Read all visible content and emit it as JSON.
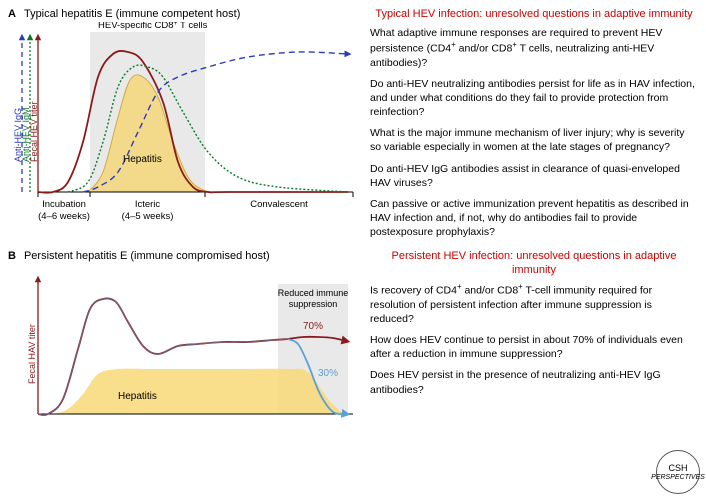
{
  "panelA": {
    "letter": "A",
    "title": "Typical hepatitis E (immune competent host)",
    "phases": [
      {
        "label": "Incubation",
        "sub": "(4–6 weeks)"
      },
      {
        "label": "Icteric",
        "sub": "(4–5 weeks)"
      },
      {
        "label": "Convalescent",
        "sub": ""
      }
    ],
    "axisLabels": {
      "fecal": "Fecal HEV titer",
      "igm": "Anti-HEV IgM",
      "igg": "Anti-HEV IgG"
    },
    "bandLabel": "HEV-specific CD8⁺ T cells",
    "hepatitisLabel": "Hepatitis",
    "colors": {
      "fecal": "#8b1a1a",
      "igm": "#0a7a2a",
      "igg": "#2a3bbb",
      "fill": "#f5d77a",
      "fillBorder": "#c9a227",
      "band": "#e9e9e9"
    },
    "curves": {
      "fecal": [
        [
          30,
          170
        ],
        [
          45,
          170
        ],
        [
          60,
          160
        ],
        [
          75,
          120
        ],
        [
          90,
          55
        ],
        [
          105,
          32
        ],
        [
          120,
          30
        ],
        [
          135,
          40
        ],
        [
          155,
          80
        ],
        [
          170,
          140
        ],
        [
          185,
          165
        ],
        [
          200,
          170
        ],
        [
          220,
          170
        ],
        [
          340,
          170
        ]
      ],
      "igm": [
        [
          60,
          170
        ],
        [
          80,
          160
        ],
        [
          95,
          120
        ],
        [
          110,
          65
        ],
        [
          125,
          45
        ],
        [
          140,
          45
        ],
        [
          155,
          55
        ],
        [
          175,
          90
        ],
        [
          200,
          130
        ],
        [
          230,
          155
        ],
        [
          270,
          165
        ],
        [
          340,
          170
        ]
      ],
      "igg": [
        [
          75,
          170
        ],
        [
          90,
          165
        ],
        [
          110,
          150
        ],
        [
          130,
          110
        ],
        [
          150,
          70
        ],
        [
          170,
          55
        ],
        [
          200,
          45
        ],
        [
          240,
          35
        ],
        [
          290,
          30
        ],
        [
          340,
          32
        ]
      ],
      "hepatitis": [
        [
          80,
          170
        ],
        [
          95,
          150
        ],
        [
          110,
          95
        ],
        [
          122,
          58
        ],
        [
          135,
          55
        ],
        [
          150,
          75
        ],
        [
          165,
          120
        ],
        [
          180,
          155
        ],
        [
          195,
          168
        ],
        [
          210,
          170
        ]
      ]
    },
    "questionsHeader": "Typical HEV infection: unresolved questions in adaptive immunity",
    "questions": [
      "What adaptive immune responses are required to prevent HEV persistence (CD4⁺ and/or CD8⁺ T cells, neutralizing anti-HEV antibodies)?",
      "Do anti-HEV neutralizing antibodies persist for life as in HAV infection, and under what conditions do they fail to provide protection from reinfection?",
      "What is the major immune mechanism of liver injury; why is severity so variable especially in women at the late stages of pregnancy?",
      "Do anti-HEV IgG antibodies assist in clearance of quasi-enveloped HAV viruses?",
      "Can passive or active immunization prevent hepatitis as described in HAV infection and, if not, why do antibodies fail to provide postexposure prophylaxis?"
    ]
  },
  "panelB": {
    "letter": "B",
    "title": "Persistent hepatitis E (immune compromised host)",
    "axisLabel": "Fecal HAV titer",
    "hepatitisLabel": "Hepatitis",
    "bandLabel": "Reduced immune suppression",
    "pctTop": "70%",
    "pctBottom": "30%",
    "colors": {
      "fecal": "#8b1a1a",
      "split": "#5aa0d8",
      "fill": "#f8d878",
      "band": "#e9e9e9"
    },
    "curves": {
      "fecal": [
        [
          30,
          150
        ],
        [
          40,
          150
        ],
        [
          55,
          135
        ],
        [
          70,
          85
        ],
        [
          82,
          45
        ],
        [
          95,
          35
        ],
        [
          108,
          38
        ],
        [
          120,
          58
        ],
        [
          135,
          82
        ],
        [
          150,
          90
        ],
        [
          170,
          82
        ],
        [
          190,
          80
        ],
        [
          215,
          78
        ],
        [
          240,
          78
        ],
        [
          265,
          76
        ],
        [
          280,
          75
        ]
      ],
      "fecal70": [
        [
          280,
          75
        ],
        [
          295,
          73
        ],
        [
          310,
          73
        ],
        [
          325,
          74
        ],
        [
          338,
          77
        ]
      ],
      "fecal30": [
        [
          280,
          75
        ],
        [
          290,
          80
        ],
        [
          300,
          100
        ],
        [
          312,
          130
        ],
        [
          325,
          148
        ],
        [
          338,
          150
        ]
      ],
      "hepatitis": [
        [
          45,
          150
        ],
        [
          60,
          145
        ],
        [
          75,
          130
        ],
        [
          90,
          110
        ],
        [
          110,
          105
        ],
        [
          140,
          105
        ],
        [
          180,
          105
        ],
        [
          230,
          105
        ],
        [
          280,
          105
        ],
        [
          300,
          108
        ],
        [
          320,
          135
        ],
        [
          335,
          150
        ]
      ]
    },
    "questionsHeader": "Persistent HEV infection: unresolved questions in adaptive immunity",
    "questions": [
      "Is recovery of CD4⁺ and/or CD8⁺ T-cell immunity required for resolution of persistent infection after immune suppression is reduced?",
      "How does HEV continue to persist in about 70% of individuals even after a reduction in immune suppression?",
      "Does HEV persist in the presence of neutralizing anti-HEV IgG antibodies?"
    ]
  },
  "logo": {
    "top": "CSH",
    "bottom": "PERSPECTIVES"
  }
}
